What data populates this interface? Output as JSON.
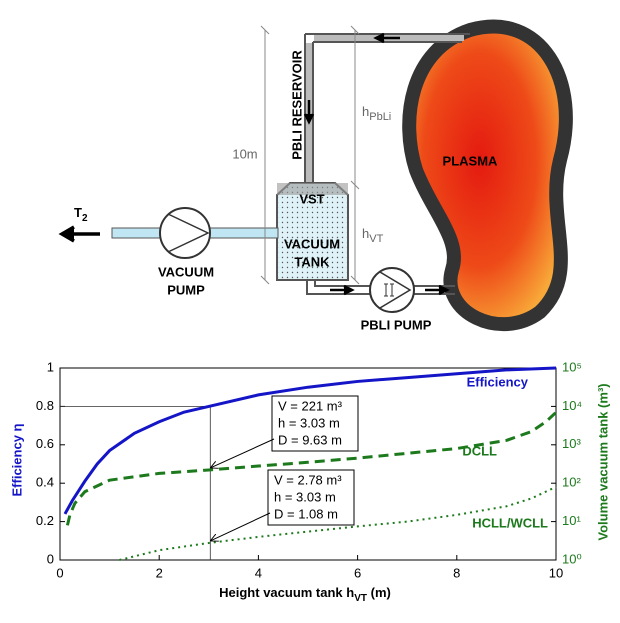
{
  "diagram": {
    "reservoir": "PBLI RESERVOIR",
    "dim_total": "10m",
    "h_pbli": {
      "text": "h",
      "sub": "PbLi"
    },
    "plasma": "PLASMA",
    "vst": "VST",
    "tank": [
      "VACUUM",
      "TANK"
    ],
    "h_vt": {
      "text": "h",
      "sub": "VT"
    },
    "t2": {
      "text": "T",
      "sub": "2"
    },
    "vacuum_pump": [
      "VACUUM",
      "PUMP"
    ],
    "pbli_pump": "PBLI PUMP"
  },
  "chart_data": {
    "type": "line",
    "xlabel": {
      "text": "Height vacuum tank h",
      "sub": "VT",
      "tail": " (m)"
    },
    "ylabel": "Efficiency η",
    "y2label": "Volume vacuum tank (m³)",
    "xlim": [
      0,
      10
    ],
    "xticks": [
      0,
      2,
      4,
      6,
      8,
      10
    ],
    "ylim": [
      0,
      1
    ],
    "yticks": [
      0,
      0.2,
      0.4,
      0.6,
      0.8,
      1
    ],
    "y2lim": [
      1,
      100000
    ],
    "y2log": true,
    "y2ticks": [
      {
        "value": 1,
        "label": "10⁰"
      },
      {
        "value": 10,
        "label": "10¹"
      },
      {
        "value": 100,
        "label": "10²"
      },
      {
        "value": 1000,
        "label": "10³"
      },
      {
        "value": 10000,
        "label": "10⁴"
      },
      {
        "value": 100000,
        "label": "10⁵"
      }
    ],
    "series": [
      {
        "name": "Efficiency",
        "color": "#1515c8",
        "style": "solid",
        "axis": "y",
        "x": [
          0.1,
          0.25,
          0.5,
          0.75,
          1,
          1.5,
          2,
          2.5,
          3,
          4,
          5,
          6,
          7,
          8,
          9,
          10
        ],
        "values": [
          0.24,
          0.31,
          0.41,
          0.5,
          0.57,
          0.66,
          0.72,
          0.77,
          0.8,
          0.86,
          0.9,
          0.93,
          0.95,
          0.97,
          0.99,
          1.0
        ]
      },
      {
        "name": "DCLL",
        "color": "#1c7a1c",
        "style": "dashed",
        "axis": "y2",
        "x": [
          0.15,
          0.2,
          0.3,
          0.5,
          1,
          2,
          3,
          4,
          5,
          6,
          7,
          8,
          9,
          9.5,
          9.8,
          10
        ],
        "values": [
          8,
          15,
          30,
          60,
          120,
          180,
          221,
          280,
          350,
          450,
          600,
          800,
          1300,
          2200,
          4000,
          7000
        ]
      },
      {
        "name": "HCLL/WCLL",
        "color": "#1c7a1c",
        "style": "dotted",
        "axis": "y2",
        "x": [
          1.2,
          2,
          3,
          4,
          5,
          6,
          7,
          8,
          9,
          9.5,
          10
        ],
        "values": [
          1,
          1.8,
          2.78,
          4,
          5.5,
          7.5,
          10,
          15,
          25,
          40,
          80
        ]
      }
    ],
    "guide": {
      "x": 3.03,
      "y": 0.8
    },
    "annotations": [
      {
        "lines": [
          "V = 221 m³",
          "h = 3.03 m",
          "D = 9.63 m"
        ],
        "at": [
          3.03,
          221
        ]
      },
      {
        "lines": [
          "V = 2.78 m³",
          "h = 3.03 m",
          "D = 1.08 m"
        ],
        "at": [
          3.03,
          2.78
        ]
      }
    ],
    "grid": false
  }
}
